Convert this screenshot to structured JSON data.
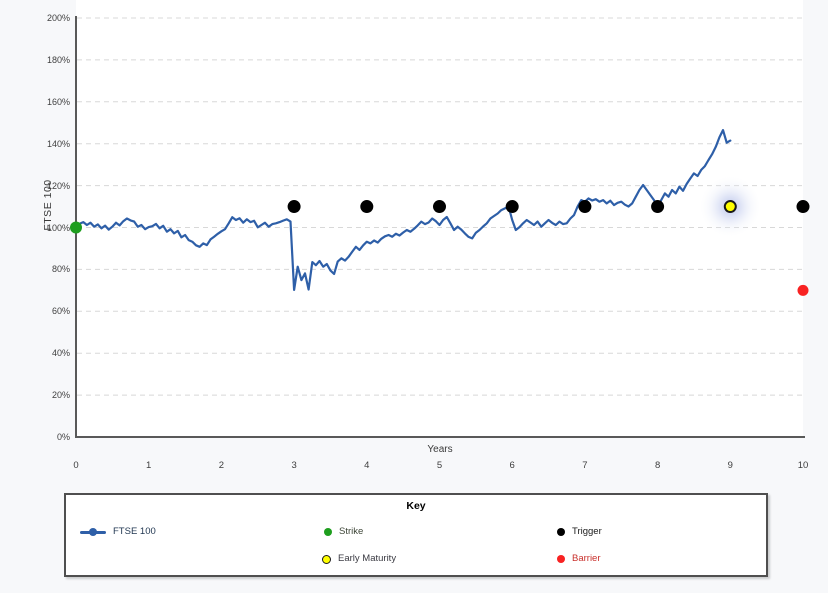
{
  "page": {
    "background": "#f7f8fa"
  },
  "chart_data": {
    "type": "line",
    "xlabel": "Years",
    "ylabel": "FTSE 100",
    "x_range": [
      0,
      10
    ],
    "y_range_pct": [
      0,
      200
    ],
    "x_ticks": [
      0,
      1,
      2,
      3,
      4,
      5,
      6,
      7,
      8,
      9,
      10
    ],
    "y_ticks_pct": [
      0,
      20,
      40,
      60,
      80,
      100,
      120,
      140,
      160,
      180,
      200
    ],
    "grid": "horizontal-dashed",
    "legend_position": "bottom-box",
    "colors": {
      "line": "#2e5fa8",
      "strike": "#1e9e1e",
      "trigger": "#000000",
      "early_maturity": "#ffff00",
      "barrier": "#f82222",
      "axis": "#595959",
      "gridline": "#d8d8d8",
      "plot_background": "#ffffff",
      "page_background": "#f7f8fa"
    },
    "series": [
      {
        "name": "FTSE 100",
        "color": "#2e5fa8",
        "x_start": 0,
        "x_step": 0.05,
        "values_pct": [
          100.0,
          101.8,
          102.6,
          101.2,
          102.3,
          100.4,
          101.5,
          99.6,
          100.9,
          99.0,
          100.4,
          102.3,
          101.0,
          103.0,
          104.3,
          103.4,
          102.8,
          100.4,
          101.2,
          99.2,
          100.2,
          100.6,
          101.7,
          99.6,
          100.8,
          98.0,
          99.2,
          97.2,
          98.4,
          95.3,
          96.4,
          94.0,
          93.2,
          91.5,
          90.8,
          92.4,
          91.6,
          94.3,
          95.6,
          97.0,
          98.2,
          99.2,
          102.0,
          104.9,
          103.6,
          104.4,
          102.3,
          103.9,
          102.6,
          103.2,
          100.1,
          101.2,
          102.3,
          100.4,
          101.6,
          102.0,
          102.6,
          103.3,
          103.9,
          102.8,
          70.2,
          81.3,
          74.9,
          78.1,
          70.4,
          83.5,
          82.0,
          84.0,
          81.3,
          82.6,
          79.5,
          77.8,
          83.7,
          85.3,
          84.2,
          86.0,
          88.5,
          90.8,
          89.3,
          91.5,
          93.2,
          92.4,
          93.8,
          92.8,
          94.6,
          95.8,
          96.4,
          95.6,
          97.0,
          96.2,
          97.6,
          98.8,
          98.0,
          99.4,
          101.0,
          102.8,
          101.6,
          102.4,
          104.3,
          103.0,
          101.2,
          103.6,
          105.0,
          102.0,
          98.8,
          100.4,
          99.0,
          97.2,
          95.5,
          94.8,
          97.5,
          98.8,
          100.5,
          102.0,
          104.3,
          105.5,
          106.7,
          108.3,
          109.1,
          110.0,
          103.6,
          98.8,
          100.2,
          102.0,
          103.6,
          102.4,
          101.2,
          102.8,
          100.4,
          102.0,
          103.6,
          102.2,
          101.2,
          102.8,
          101.6,
          102.0,
          104.3,
          105.9,
          110.0,
          113.1,
          112.3,
          113.9,
          112.9,
          113.5,
          112.3,
          113.1,
          111.5,
          112.8,
          110.7,
          111.8,
          112.3,
          110.9,
          110.0,
          111.5,
          114.7,
          117.9,
          120.3,
          117.9,
          115.5,
          113.1,
          109.8,
          113.1,
          116.3,
          114.7,
          117.9,
          116.3,
          119.5,
          117.5,
          120.8,
          123.4,
          125.8,
          124.6,
          127.5,
          129.3,
          132.2,
          135.0,
          138.5,
          143.0,
          146.5,
          140.5,
          141.5
        ]
      }
    ],
    "markers": {
      "strike": {
        "label": "Strike",
        "x_year": 0,
        "y_pct": 100,
        "color": "#1e9e1e"
      },
      "triggers": {
        "label": "Trigger",
        "x_years": [
          3,
          4,
          5,
          6,
          7,
          8,
          10
        ],
        "y_pct": 110,
        "color": "#000000"
      },
      "early_maturity": {
        "label": "Early Maturity",
        "x_year": 9,
        "y_pct": 110,
        "color": "#ffff00",
        "highlighted": true
      },
      "barrier": {
        "label": "Barrier",
        "x_year": 10,
        "y_pct": 70,
        "color": "#f82222"
      }
    }
  },
  "axes": {
    "y_tick_labels": [
      "0%",
      "20%",
      "40%",
      "60%",
      "80%",
      "100%",
      "120%",
      "140%",
      "160%",
      "180%",
      "200%"
    ],
    "x_tick_labels": [
      "0",
      "1",
      "2",
      "3",
      "4",
      "5",
      "6",
      "7",
      "8",
      "9",
      "10"
    ]
  },
  "legend": {
    "title": "Key",
    "items": [
      {
        "id": "ftse",
        "label": "FTSE 100",
        "marker": "line-dot",
        "color": "#2e5fa8",
        "label_color": "#1f3550"
      },
      {
        "id": "strike",
        "label": "Strike",
        "marker": "dot",
        "color": "#1e9e1e",
        "label_color": "#3c4436"
      },
      {
        "id": "trigger",
        "label": "Trigger",
        "marker": "dot",
        "color": "#000000",
        "label_color": "#1a1a1a"
      },
      {
        "id": "early-maturity",
        "label": "Early Maturity",
        "marker": "dot-outlined",
        "color": "#ffff00",
        "label_color": "#3a3a42"
      },
      {
        "id": "barrier",
        "label": "Barrier",
        "marker": "dot",
        "color": "#f82222",
        "label_color": "#c9302c"
      }
    ]
  }
}
